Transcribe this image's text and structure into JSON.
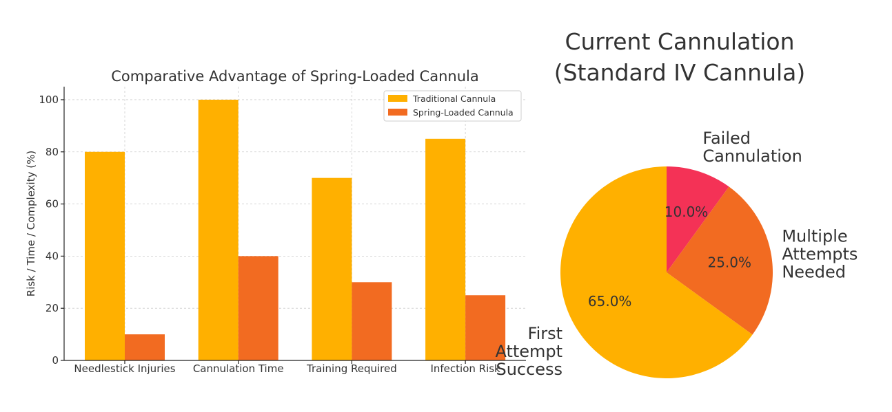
{
  "chart_data": [
    {
      "type": "bar",
      "title": "Comparative Advantage of Spring-Loaded Cannula",
      "xlabel": "",
      "ylabel": "Risk / Time / Complexity (%)",
      "ylim": [
        0,
        105
      ],
      "yticks": [
        0,
        20,
        40,
        60,
        80,
        100
      ],
      "grid": true,
      "legend_position": "top-right",
      "categories": [
        "Needlestick Injuries",
        "Cannulation Time",
        "Training Required",
        "Infection Risk"
      ],
      "series": [
        {
          "name": "Traditional Cannula",
          "color": "#FFB000",
          "values": [
            80,
            100,
            70,
            85
          ]
        },
        {
          "name": "Spring-Loaded Cannula",
          "color": "#F26B21",
          "values": [
            10,
            40,
            30,
            25
          ]
        }
      ]
    },
    {
      "type": "pie",
      "title": [
        "Current Cannulation",
        "(Standard IV Cannula)"
      ],
      "slices": [
        {
          "label": [
            "Failed",
            "Cannulation"
          ],
          "value": 10.0,
          "pct_label": "10.0%",
          "color": "#F43256"
        },
        {
          "label": [
            "Multiple",
            "Attempts",
            "Needed"
          ],
          "value": 25.0,
          "pct_label": "25.0%",
          "color": "#F26B21"
        },
        {
          "label": [
            "First",
            "Attempt",
            "Success"
          ],
          "value": 65.0,
          "pct_label": "65.0%",
          "color": "#FFB000"
        }
      ],
      "start_angle": 90,
      "direction": "clockwise"
    }
  ]
}
